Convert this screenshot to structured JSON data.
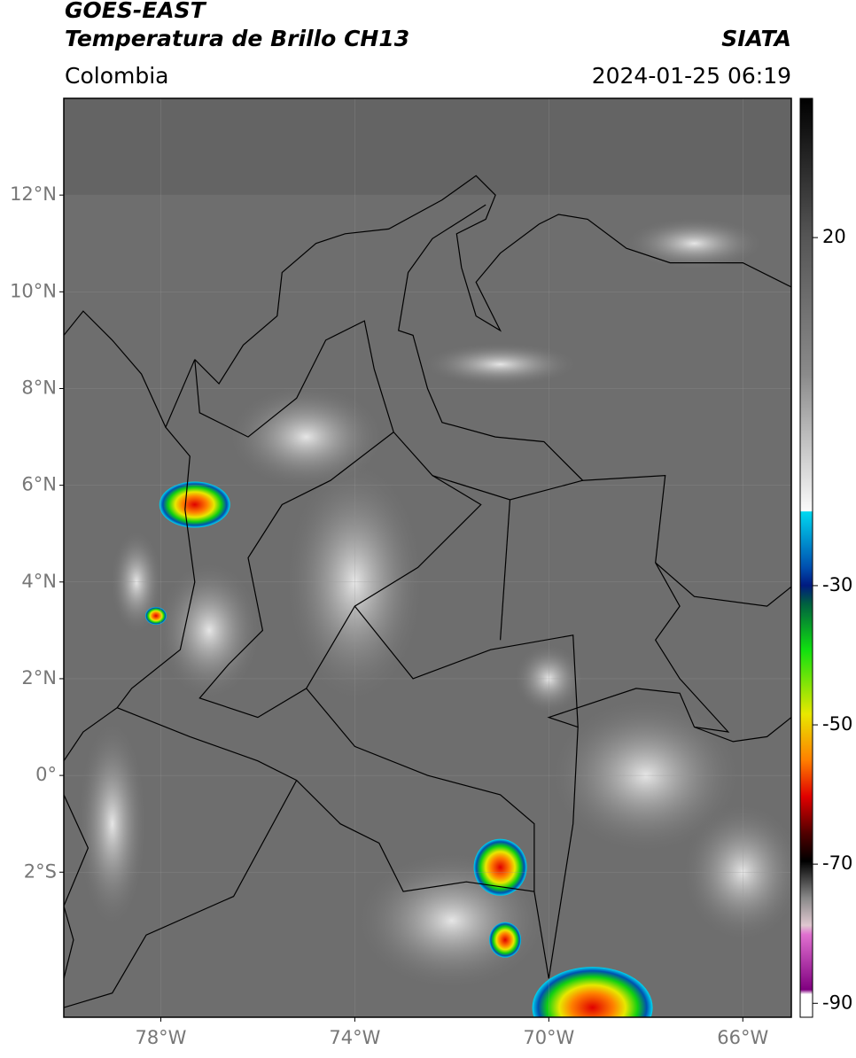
{
  "header": {
    "title": "GOES-EAST",
    "subtitle": "Temperatura de Brillo CH13",
    "region": "Colombia",
    "source": "SIATA",
    "datetime": "2024-01-25 06:19"
  },
  "map": {
    "xlim": [
      -80,
      -65
    ],
    "ylim": [
      -5,
      14
    ],
    "lon_ticks": [
      {
        "value": -78,
        "label": "78°W"
      },
      {
        "value": -74,
        "label": "74°W"
      },
      {
        "value": -70,
        "label": "70°W"
      },
      {
        "value": -66,
        "label": "66°W"
      }
    ],
    "lat_ticks": [
      {
        "value": 12,
        "label": "12°N"
      },
      {
        "value": 10,
        "label": "10°N"
      },
      {
        "value": 8,
        "label": "8°N"
      },
      {
        "value": 6,
        "label": "6°N"
      },
      {
        "value": 4,
        "label": "4°N"
      },
      {
        "value": 2,
        "label": "2°N"
      },
      {
        "value": 0,
        "label": "0°"
      },
      {
        "value": -2,
        "label": "2°S"
      }
    ]
  },
  "colorbar": {
    "clim": [
      -92,
      40
    ],
    "ticks": [
      20,
      -30,
      -50,
      -70,
      -90
    ]
  }
}
